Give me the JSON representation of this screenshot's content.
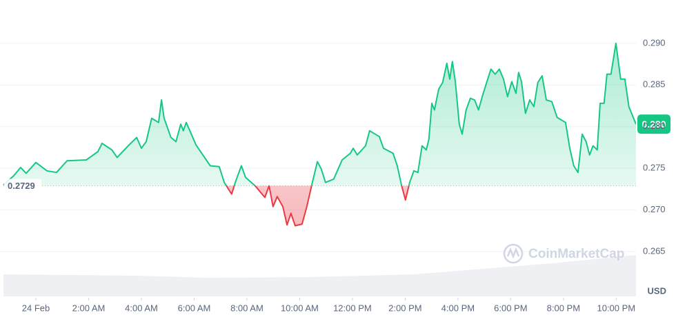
{
  "chart_data": {
    "type": "baseline-line",
    "x": [
      -1.23,
      -0.84,
      -0.58,
      -0.37,
      0,
      0.42,
      0.78,
      1.18,
      1.91,
      2.35,
      2.51,
      2.88,
      3.08,
      3.5,
      3.82,
      4,
      4.18,
      4.39,
      4.65,
      4.76,
      4.86,
      5.12,
      5.31,
      5.49,
      5.59,
      5.7,
      6.07,
      6.61,
      6.95,
      7.14,
      7.42,
      7.58,
      7.79,
      7.95,
      8.31,
      8.68,
      8.84,
      8.99,
      9.15,
      9.36,
      9.52,
      9.67,
      9.83,
      10.09,
      10.27,
      10.46,
      10.67,
      10.82,
      10.98,
      11.29,
      11.61,
      11.92,
      12.03,
      12.18,
      12.5,
      12.65,
      13.02,
      13.18,
      13.54,
      13.7,
      13.86,
      14.01,
      14.17,
      14.33,
      14.48,
      14.64,
      14.8,
      14.9,
      15.01,
      15.11,
      15.27,
      15.42,
      15.58,
      15.69,
      15.79,
      15.9,
      16.05,
      16.16,
      16.31,
      16.47,
      16.63,
      16.78,
      16.94,
      17.1,
      17.25,
      17.41,
      17.57,
      17.73,
      17.88,
      18.04,
      18.2,
      18.3,
      18.41,
      18.56,
      18.72,
      18.88,
      19.03,
      19.19,
      19.35,
      19.56,
      19.76,
      20.08,
      20.24,
      20.39,
      20.55,
      20.71,
      20.86,
      20.99,
      21.12,
      21.28,
      21.39,
      21.54,
      21.65,
      21.8,
      21.99,
      22.17,
      22.33,
      22.48,
      22.75
    ],
    "values": [
      0.273,
      0.2741,
      0.2751,
      0.2744,
      0.2757,
      0.2747,
      0.2745,
      0.2759,
      0.276,
      0.277,
      0.278,
      0.2772,
      0.2763,
      0.2777,
      0.2787,
      0.2774,
      0.2782,
      0.281,
      0.2805,
      0.2832,
      0.281,
      0.2787,
      0.2782,
      0.2803,
      0.2795,
      0.2805,
      0.2778,
      0.2753,
      0.2752,
      0.2733,
      0.2719,
      0.2735,
      0.2753,
      0.2739,
      0.2729,
      0.2715,
      0.2729,
      0.2704,
      0.2716,
      0.2704,
      0.2682,
      0.2696,
      0.2681,
      0.2683,
      0.2704,
      0.273,
      0.2758,
      0.2749,
      0.2733,
      0.2737,
      0.276,
      0.2768,
      0.2774,
      0.2766,
      0.2777,
      0.2795,
      0.2788,
      0.2774,
      0.2768,
      0.2753,
      0.273,
      0.2712,
      0.2733,
      0.2747,
      0.2745,
      0.2777,
      0.2772,
      0.2785,
      0.2828,
      0.282,
      0.2845,
      0.2853,
      0.2876,
      0.2857,
      0.2878,
      0.2854,
      0.2803,
      0.2791,
      0.282,
      0.2834,
      0.2832,
      0.282,
      0.2838,
      0.2854,
      0.2869,
      0.2863,
      0.2869,
      0.2857,
      0.2836,
      0.2854,
      0.284,
      0.2865,
      0.2854,
      0.2816,
      0.2832,
      0.2824,
      0.2853,
      0.2861,
      0.2832,
      0.283,
      0.2811,
      0.2805,
      0.2774,
      0.2753,
      0.2745,
      0.2791,
      0.2782,
      0.2766,
      0.2777,
      0.2772,
      0.2828,
      0.2828,
      0.2863,
      0.2863,
      0.29,
      0.2857,
      0.2857,
      0.2824,
      0.2803
    ],
    "baseline": 0.2729,
    "current_price": {
      "value": 0.2803,
      "label": "0.280"
    },
    "xlim": [
      -1.23,
      22.75
    ],
    "xticks": [
      {
        "value": 0,
        "label": "24 Feb"
      },
      {
        "value": 2,
        "label": "2:00 AM"
      },
      {
        "value": 4,
        "label": "4:00 AM"
      },
      {
        "value": 6,
        "label": "6:00 AM"
      },
      {
        "value": 8,
        "label": "8:00 AM"
      },
      {
        "value": 10,
        "label": "10:00 AM"
      },
      {
        "value": 12,
        "label": "12:00 PM"
      },
      {
        "value": 14,
        "label": "2:00 PM"
      },
      {
        "value": 16,
        "label": "4:00 PM"
      },
      {
        "value": 18,
        "label": "6:00 PM"
      },
      {
        "value": 20,
        "label": "8:00 PM"
      },
      {
        "value": 22,
        "label": "10:00 PM"
      }
    ],
    "ylim": [
      0.2626,
      0.2952
    ],
    "yticks": [
      0.265,
      {
        "value": 0.27,
        "label": "0.270"
      },
      0.275,
      {
        "value": 0.28,
        "label": "0.280"
      },
      0.285,
      {
        "value": 0.29,
        "label": "0.290"
      }
    ],
    "currency": "USD",
    "watermark": "CoinMarketCap",
    "up_color": "#16c784",
    "down_color": "#ea3943",
    "grid": true
  }
}
